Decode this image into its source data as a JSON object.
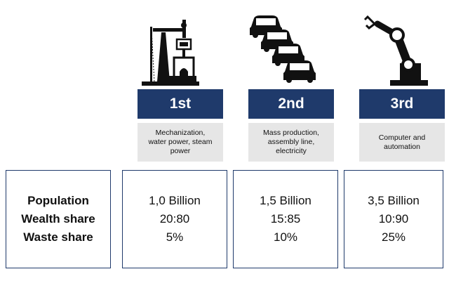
{
  "stages": [
    {
      "label": "1st",
      "icon": "oil-pump-steam-engine-icon",
      "description_lines": [
        "Mechanization,",
        "water power, steam",
        "power"
      ],
      "population": "1,0 Billion",
      "wealth_share": "20:80",
      "waste_share": "5%"
    },
    {
      "label": "2nd",
      "icon": "stacked-cars-assembly-line-icon",
      "description_lines": [
        "Mass production,",
        "assembly line,",
        "electricity"
      ],
      "population": "1,5 Billion",
      "wealth_share": "15:85",
      "waste_share": "10%"
    },
    {
      "label": "3rd",
      "icon": "robot-arm-icon",
      "description_lines": [
        "Computer and",
        "automation"
      ],
      "population": "3,5 Billion",
      "wealth_share": "10:90",
      "waste_share": "25%"
    }
  ],
  "row_labels": {
    "population": "Population",
    "wealth_share": "Wealth share",
    "waste_share": "Waste share"
  },
  "colors": {
    "banner": "#1f3a6b",
    "description_bg": "#e6e6e6",
    "border": "#1f3a6b",
    "icon": "#111111"
  }
}
